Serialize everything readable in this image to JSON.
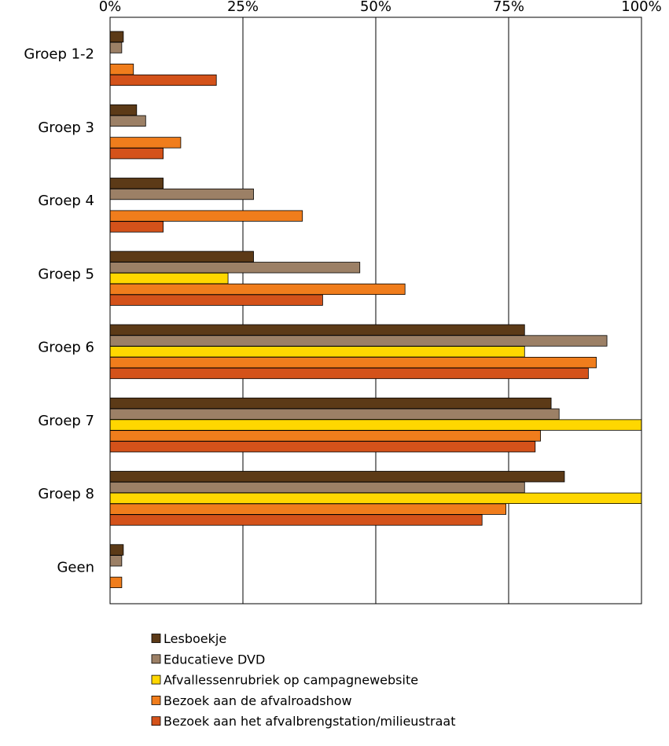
{
  "chart_data": {
    "type": "bar",
    "orientation": "horizontal",
    "categories": [
      "Groep 1-2",
      "Groep 3",
      "Groep 4",
      "Groep 5",
      "Groep 6",
      "Groep 7",
      "Groep 8",
      "Geen"
    ],
    "x_ticks": [
      "0%",
      "25%",
      "50%",
      "75%",
      "100%"
    ],
    "xlim": [
      0,
      100
    ],
    "grid": "vertical",
    "legend_position": "bottom",
    "series": [
      {
        "name": "Lesboekje",
        "color": "#5c3a17",
        "values": [
          2.5,
          5,
          10,
          27,
          78,
          83,
          85.5,
          2.5
        ]
      },
      {
        "name": "Educatieve DVD",
        "color": "#9c8066",
        "values": [
          2.2,
          6.7,
          27,
          47,
          93.5,
          84.5,
          78,
          2.2
        ]
      },
      {
        "name": "Afvallessenrubriek op campagnewebsite",
        "color": "#ffd700",
        "values": [
          0,
          0,
          0,
          22.2,
          78,
          100,
          100,
          0
        ]
      },
      {
        "name": "Bezoek aan de afvalroadshow",
        "color": "#f07d1c",
        "values": [
          4.4,
          13.3,
          36.2,
          55.5,
          91.5,
          81,
          74.5,
          2.2
        ]
      },
      {
        "name": "Bezoek aan het afvalbrengstation/milieustraat",
        "color": "#d4521a",
        "values": [
          20,
          10,
          10,
          40,
          90,
          80,
          70,
          0
        ]
      }
    ]
  }
}
